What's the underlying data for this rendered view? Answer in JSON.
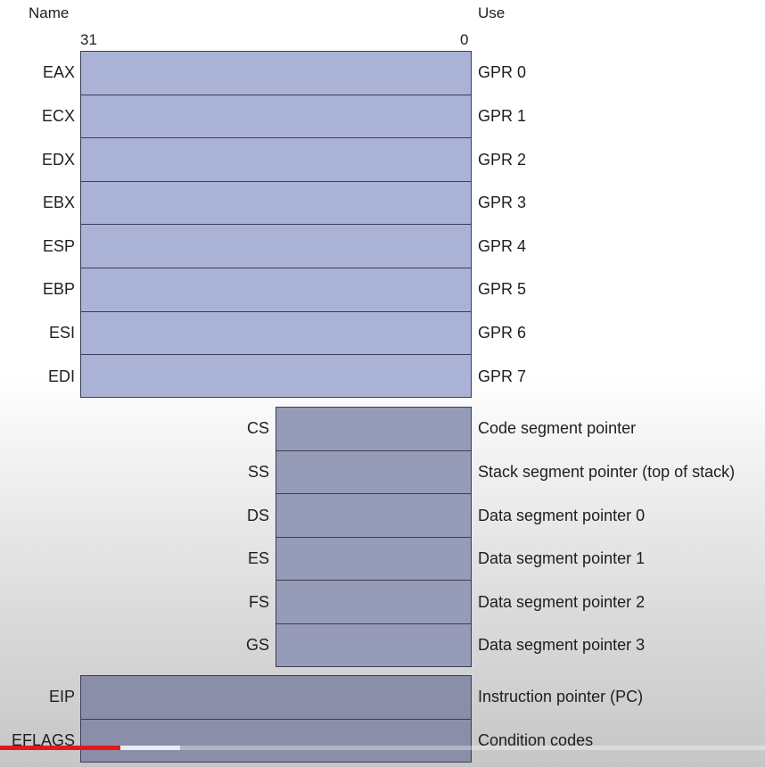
{
  "headers": {
    "name": "Name",
    "use": "Use",
    "bit_high": "31",
    "bit_low": "0"
  },
  "gpr_registers": [
    {
      "name": "EAX",
      "use": "GPR 0"
    },
    {
      "name": "ECX",
      "use": "GPR 1"
    },
    {
      "name": "EDX",
      "use": "GPR 2"
    },
    {
      "name": "EBX",
      "use": "GPR 3"
    },
    {
      "name": "ESP",
      "use": "GPR 4"
    },
    {
      "name": "EBP",
      "use": "GPR 5"
    },
    {
      "name": "ESI",
      "use": "GPR 6"
    },
    {
      "name": "EDI",
      "use": "GPR 7"
    }
  ],
  "segment_registers": [
    {
      "name": "CS",
      "use": "Code segment pointer"
    },
    {
      "name": "SS",
      "use": "Stack segment pointer (top of stack)"
    },
    {
      "name": "DS",
      "use": "Data segment pointer 0"
    },
    {
      "name": "ES",
      "use": "Data segment pointer 1"
    },
    {
      "name": "FS",
      "use": "Data segment pointer 2"
    },
    {
      "name": "GS",
      "use": "Data segment pointer 3"
    }
  ],
  "control_registers": [
    {
      "name": "EIP",
      "use": "Instruction pointer (PC)"
    },
    {
      "name": "EFLAGS",
      "use": "Condition codes"
    }
  ],
  "colors": {
    "register_fill": "#aab2d6",
    "register_border": "#3b3d55",
    "progress_played": "#e8161b"
  },
  "video_progress_fraction": 0.157
}
